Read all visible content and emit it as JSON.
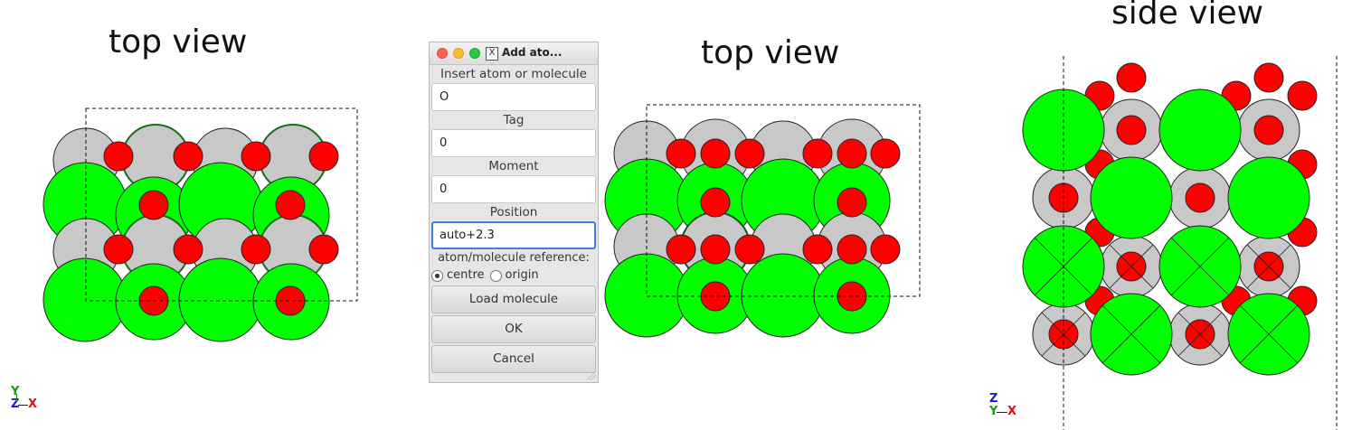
{
  "captions": {
    "left": "top view",
    "middle": "top view",
    "right": "side view"
  },
  "axes": {
    "left": {
      "up": "Y",
      "origin": "Z",
      "right": "X"
    },
    "right": {
      "up": "Z",
      "origin": "Y",
      "right": "X"
    }
  },
  "colors": {
    "metal": "#00ff00",
    "oxygen": "#ff0000",
    "lower_layer": "#c8c8c8",
    "dialog_focus": "#3b7fd6"
  },
  "dialog": {
    "title": "Add ato...",
    "window_icon": "X",
    "insert_label": "Insert atom or molecule",
    "insert_value": "O",
    "tag_label": "Tag",
    "tag_value": "0",
    "moment_label": "Moment",
    "moment_value": "0",
    "position_label": "Position",
    "position_value": "auto+2.3",
    "reference_label": "atom/molecule reference:",
    "reference_options": [
      "centre",
      "origin"
    ],
    "reference_selected": "centre",
    "load_button": "Load molecule",
    "ok_button": "OK",
    "cancel_button": "Cancel"
  }
}
